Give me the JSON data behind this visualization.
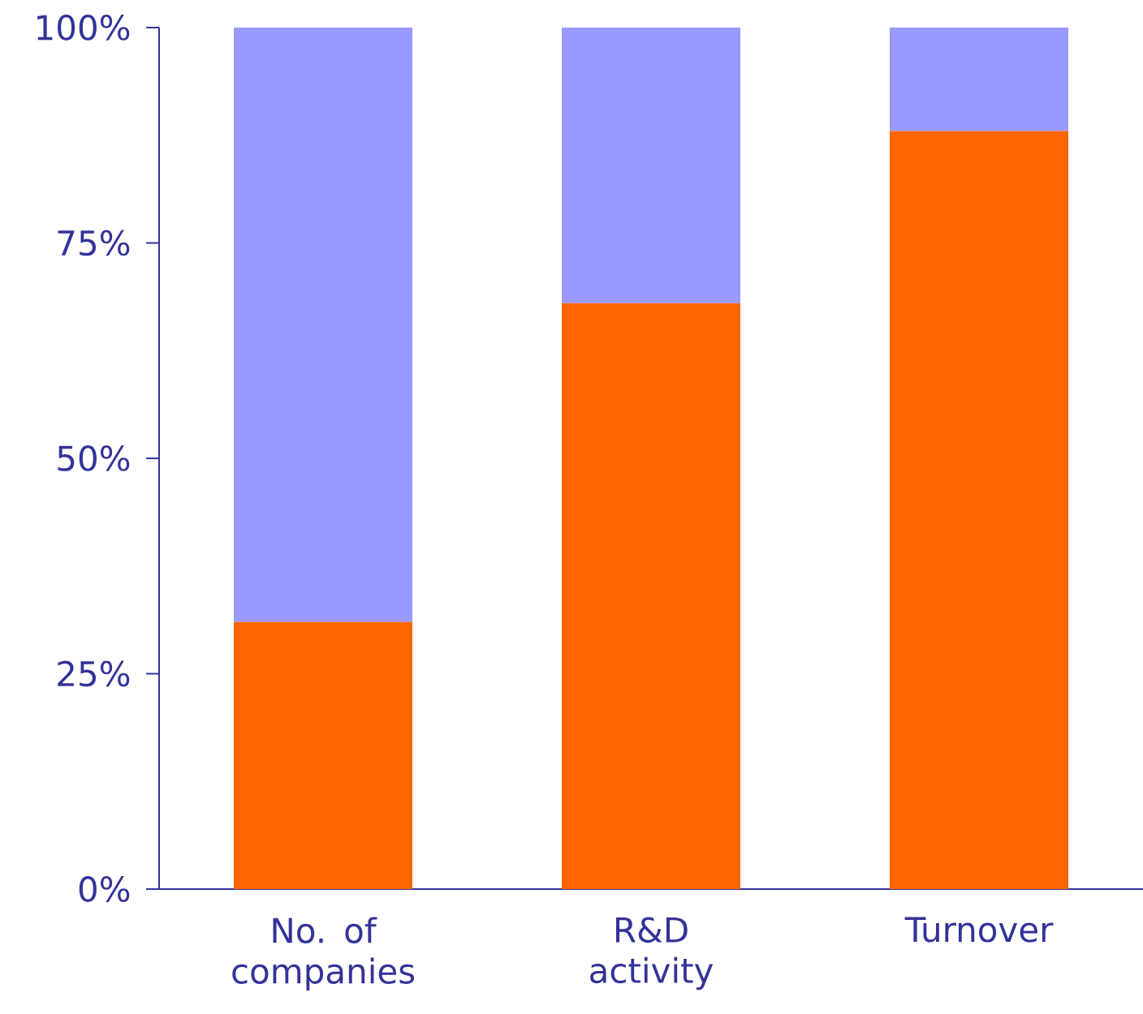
{
  "chart_data": {
    "type": "bar",
    "stacked": true,
    "categories": [
      "No. of companies",
      "R&D activity",
      "Turnover"
    ],
    "series": [
      {
        "color": "#ff6600",
        "values": [
          31,
          68,
          88
        ]
      },
      {
        "color": "#9999ff",
        "values": [
          69,
          32,
          12
        ]
      }
    ],
    "ylim": [
      0,
      100
    ],
    "yticks": [
      {
        "value": 0,
        "label": "0%"
      },
      {
        "value": 25,
        "label": "25%"
      },
      {
        "value": 50,
        "label": "50%"
      },
      {
        "value": 75,
        "label": "75%"
      },
      {
        "value": 100,
        "label": "100%"
      }
    ],
    "grid": false
  }
}
